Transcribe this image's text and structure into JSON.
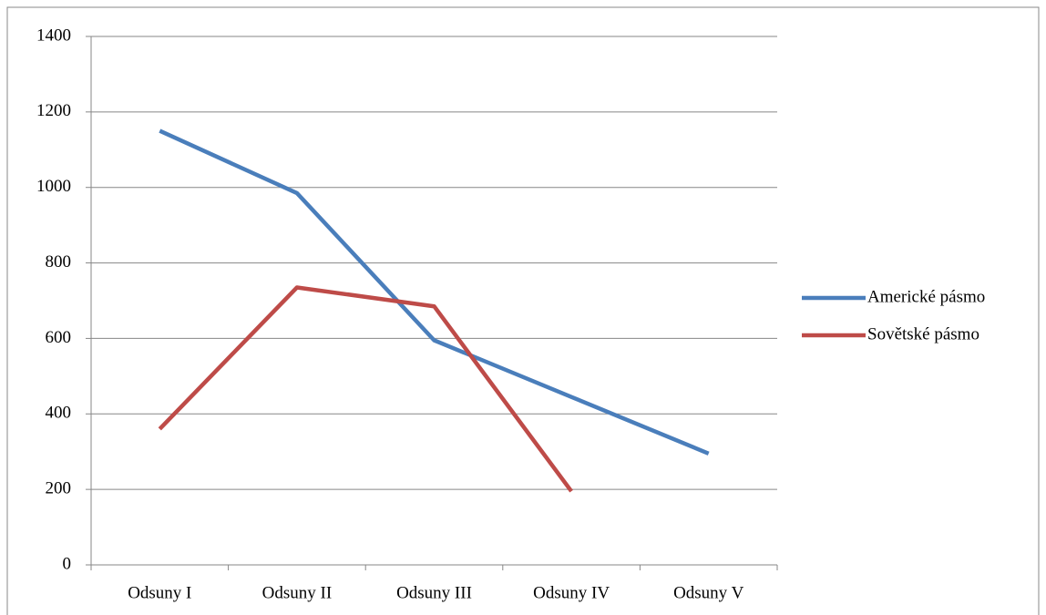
{
  "chart_data": {
    "type": "line",
    "categories": [
      "Odsuny I",
      "Odsuny II",
      "Odsuny III",
      "Odsuny IV",
      "Odsuny V"
    ],
    "series": [
      {
        "name": "Americké pásmo",
        "color": "#4a7ebb",
        "values": [
          1150,
          985,
          595,
          445,
          295
        ]
      },
      {
        "name": "Sovětské pásmo",
        "color": "#be4b48",
        "values": [
          360,
          735,
          685,
          195,
          null
        ]
      }
    ],
    "ylim": [
      0,
      1400
    ],
    "yticks": [
      0,
      200,
      400,
      600,
      800,
      1000,
      1200,
      1400
    ],
    "grid": true,
    "legend": "right"
  }
}
